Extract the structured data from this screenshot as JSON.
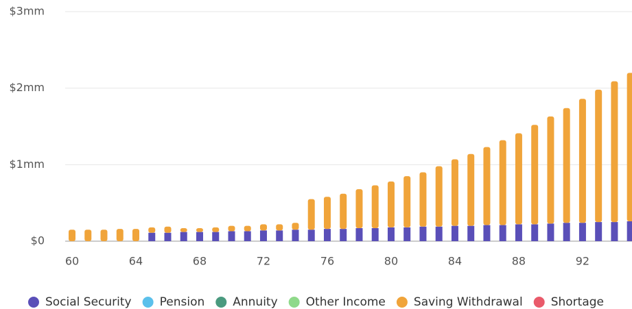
{
  "chart_data": {
    "type": "bar",
    "stacked": true,
    "x": [
      60,
      61,
      62,
      63,
      64,
      65,
      66,
      67,
      68,
      69,
      70,
      71,
      72,
      73,
      74,
      75,
      76,
      77,
      78,
      79,
      80,
      81,
      82,
      83,
      84,
      85,
      86,
      87,
      88,
      89,
      90,
      91,
      92,
      93,
      94,
      95
    ],
    "xlim": [
      59.57,
      95.1
    ],
    "xticks": [
      60,
      64,
      68,
      72,
      76,
      80,
      84,
      88,
      92
    ],
    "ylim": [
      0,
      3
    ],
    "yticks": [
      {
        "value": 0,
        "label": "$0"
      },
      {
        "value": 1,
        "label": "$1mm"
      },
      {
        "value": 2,
        "label": "$2mm"
      },
      {
        "value": 3,
        "label": "$3mm"
      }
    ],
    "grid": true,
    "legend": "bottom",
    "series": [
      {
        "name": "Social Security",
        "color": "#5a4fb8",
        "values": [
          0,
          0,
          0,
          0,
          0,
          0.11,
          0.11,
          0.12,
          0.12,
          0.12,
          0.13,
          0.13,
          0.14,
          0.14,
          0.15,
          0.15,
          0.16,
          0.16,
          0.17,
          0.17,
          0.18,
          0.18,
          0.19,
          0.19,
          0.2,
          0.2,
          0.21,
          0.21,
          0.22,
          0.22,
          0.23,
          0.24,
          0.24,
          0.25,
          0.25,
          0.26
        ]
      },
      {
        "name": "Pension",
        "color": "#5bc0eb",
        "values": [
          0,
          0,
          0,
          0,
          0,
          0,
          0,
          0,
          0,
          0,
          0,
          0,
          0,
          0,
          0,
          0,
          0,
          0,
          0,
          0,
          0,
          0,
          0,
          0,
          0,
          0,
          0,
          0,
          0,
          0,
          0,
          0,
          0,
          0,
          0,
          0
        ]
      },
      {
        "name": "Annuity",
        "color": "#4a9a7f",
        "values": [
          0,
          0,
          0,
          0,
          0,
          0,
          0,
          0,
          0,
          0,
          0,
          0,
          0,
          0,
          0,
          0,
          0,
          0,
          0,
          0,
          0,
          0,
          0,
          0,
          0,
          0,
          0,
          0,
          0,
          0,
          0,
          0,
          0,
          0,
          0,
          0
        ]
      },
      {
        "name": "Other Income",
        "color": "#8fd98a",
        "values": [
          0,
          0,
          0,
          0,
          0,
          0,
          0,
          0,
          0,
          0,
          0,
          0,
          0,
          0,
          0,
          0,
          0,
          0,
          0,
          0,
          0,
          0,
          0,
          0,
          0,
          0,
          0,
          0,
          0,
          0,
          0,
          0,
          0,
          0,
          0,
          0
        ]
      },
      {
        "name": "Saving Withdrawal",
        "color": "#f0a43a",
        "values": [
          0.15,
          0.15,
          0.15,
          0.16,
          0.16,
          0.07,
          0.08,
          0.05,
          0.05,
          0.06,
          0.07,
          0.07,
          0.08,
          0.08,
          0.09,
          0.4,
          0.42,
          0.46,
          0.51,
          0.56,
          0.6,
          0.67,
          0.71,
          0.79,
          0.87,
          0.94,
          1.02,
          1.11,
          1.19,
          1.3,
          1.4,
          1.5,
          1.62,
          1.73,
          1.84,
          1.94
        ]
      },
      {
        "name": "Shortage",
        "color": "#e95a6a",
        "values": [
          0,
          0,
          0,
          0,
          0,
          0,
          0,
          0,
          0,
          0,
          0,
          0,
          0,
          0,
          0,
          0,
          0,
          0,
          0,
          0,
          0,
          0,
          0,
          0,
          0,
          0,
          0,
          0,
          0,
          0,
          0,
          0,
          0,
          0,
          0,
          0
        ]
      }
    ]
  }
}
